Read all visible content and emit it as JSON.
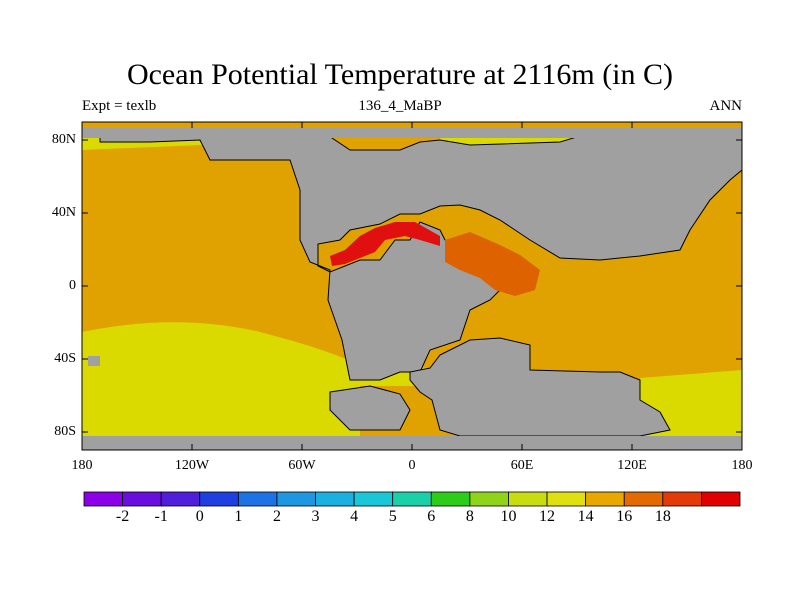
{
  "header": {
    "title": "Ocean Potential Temperature at 2116m (in C)",
    "left": "Expt = texlb",
    "center": "136_4_MaBP",
    "right": "ANN"
  },
  "axes": {
    "lat_labels": [
      "80N",
      "40N",
      "0",
      "40S",
      "80S"
    ],
    "lon_labels": [
      "180",
      "120W",
      "60W",
      "0",
      "60E",
      "120E",
      "180"
    ]
  },
  "colorbar": {
    "labels": [
      "-2",
      "-1",
      "0",
      "1",
      "2",
      "3",
      "4",
      "5",
      "6",
      "8",
      "10",
      "12",
      "14",
      "16",
      "18"
    ],
    "colors": [
      "#8b00e6",
      "#6a0ee0",
      "#4f1fdb",
      "#1f3fe0",
      "#1f72e6",
      "#1f96e0",
      "#1ab0e0",
      "#19c7d9",
      "#1ad0a8",
      "#2ecc1a",
      "#8fd41a",
      "#c8dc10",
      "#e0e010",
      "#e8a800",
      "#e26a00",
      "#e23a08",
      "#e00000"
    ]
  },
  "map_colors": {
    "land": "#a0a0a0",
    "temp_12": "#dada00",
    "temp_14": "#e0a200",
    "temp_16": "#de6200",
    "temp_18": "#e01010"
  }
}
